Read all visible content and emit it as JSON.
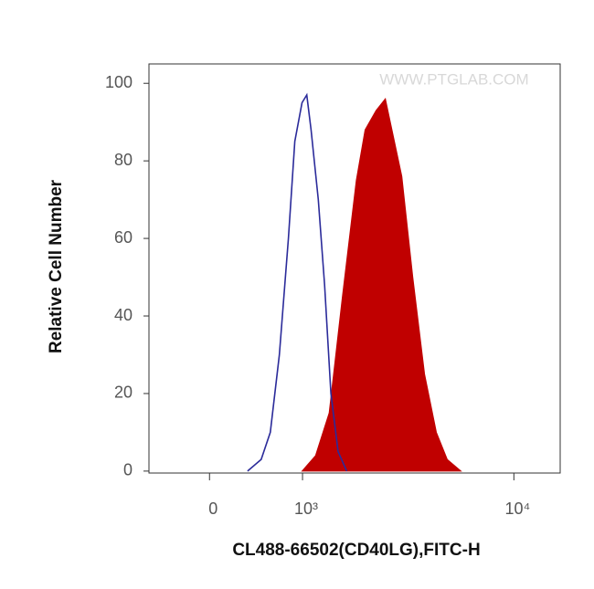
{
  "chart_data": {
    "type": "histogram-overlay",
    "watermark": "WWW.PTGLAB.COM",
    "xlabel": "CL488-66502(CD40LG),FITC-H",
    "ylabel": "Relative Cell Number",
    "xscale": "biexponential",
    "xlim": [
      -600,
      16000
    ],
    "xticks": [
      0,
      {
        "value": 1000,
        "label": "10³"
      },
      {
        "value": 10000,
        "label": "10⁴"
      }
    ],
    "ylim": [
      -0.5,
      105
    ],
    "yticks": [
      0,
      20,
      40,
      60,
      80,
      100
    ],
    "series": [
      {
        "color": "#c00000",
        "fill": true,
        "x": [
          993,
          1188,
          1407,
          1646,
          1929,
          2127,
          2397,
          2652,
          2918,
          3156,
          3542,
          4004,
          4526,
          5062,
          5826
        ],
        "values": [
          0,
          4,
          15,
          45,
          75,
          88,
          93,
          96,
          85,
          76,
          50,
          25,
          10,
          3,
          0
        ]
      },
      {
        "color": "#2b2b9a",
        "fill": false,
        "x": [
          363,
          503,
          603,
          706,
          815,
          897,
          993,
          1059,
          1121,
          1230,
          1332,
          1437,
          1566,
          1730
        ],
        "values": [
          0,
          3,
          10,
          30,
          60,
          85,
          95,
          97,
          88,
          70,
          48,
          20,
          5,
          0
        ]
      }
    ]
  }
}
